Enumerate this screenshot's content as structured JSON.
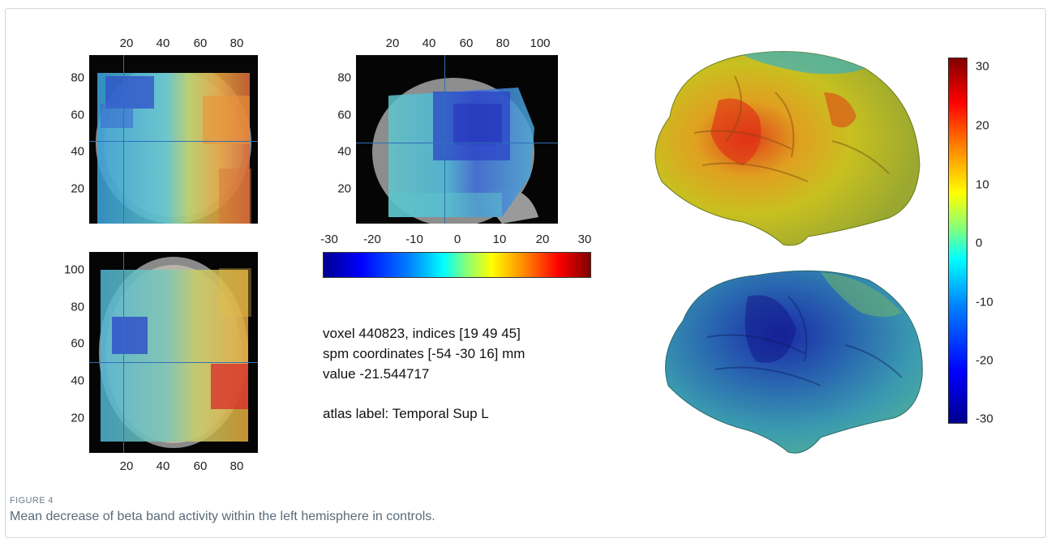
{
  "figure": {
    "label": "FIGURE 4",
    "caption": "Mean decrease of beta band activity within the left hemisphere in controls."
  },
  "panels": {
    "coronal": {
      "x_ticks": [
        "20",
        "40",
        "60",
        "80"
      ],
      "y_ticks": [
        "80",
        "60",
        "40",
        "20"
      ]
    },
    "sagittal": {
      "x_ticks": [
        "20",
        "40",
        "60",
        "80",
        "100"
      ],
      "y_ticks": [
        "80",
        "60",
        "40",
        "20"
      ]
    },
    "axial": {
      "x_ticks": [
        "20",
        "40",
        "60",
        "80"
      ],
      "y_ticks": [
        "100",
        "80",
        "60",
        "40",
        "20"
      ]
    }
  },
  "colorbar_horizontal": {
    "ticks": [
      "-30",
      "-20",
      "-10",
      "0",
      "10",
      "20",
      "30"
    ],
    "range": [
      -30,
      30
    ],
    "colormap": "jet"
  },
  "colorbar_vertical": {
    "ticks": [
      "30",
      "20",
      "10",
      "0",
      "-10",
      "-20",
      "-30"
    ],
    "range": [
      -30,
      30
    ],
    "colormap": "jet"
  },
  "voxel_info": {
    "line1": "voxel 440823, indices [19 49 45]",
    "line2": "spm coordinates [-54 -30 16] mm",
    "line3": "value -21.544717",
    "line4": "atlas label: Temporal Sup L"
  },
  "colors": {
    "crosshair": "#2f6fb7",
    "caption_text": "#5a6a7a"
  }
}
